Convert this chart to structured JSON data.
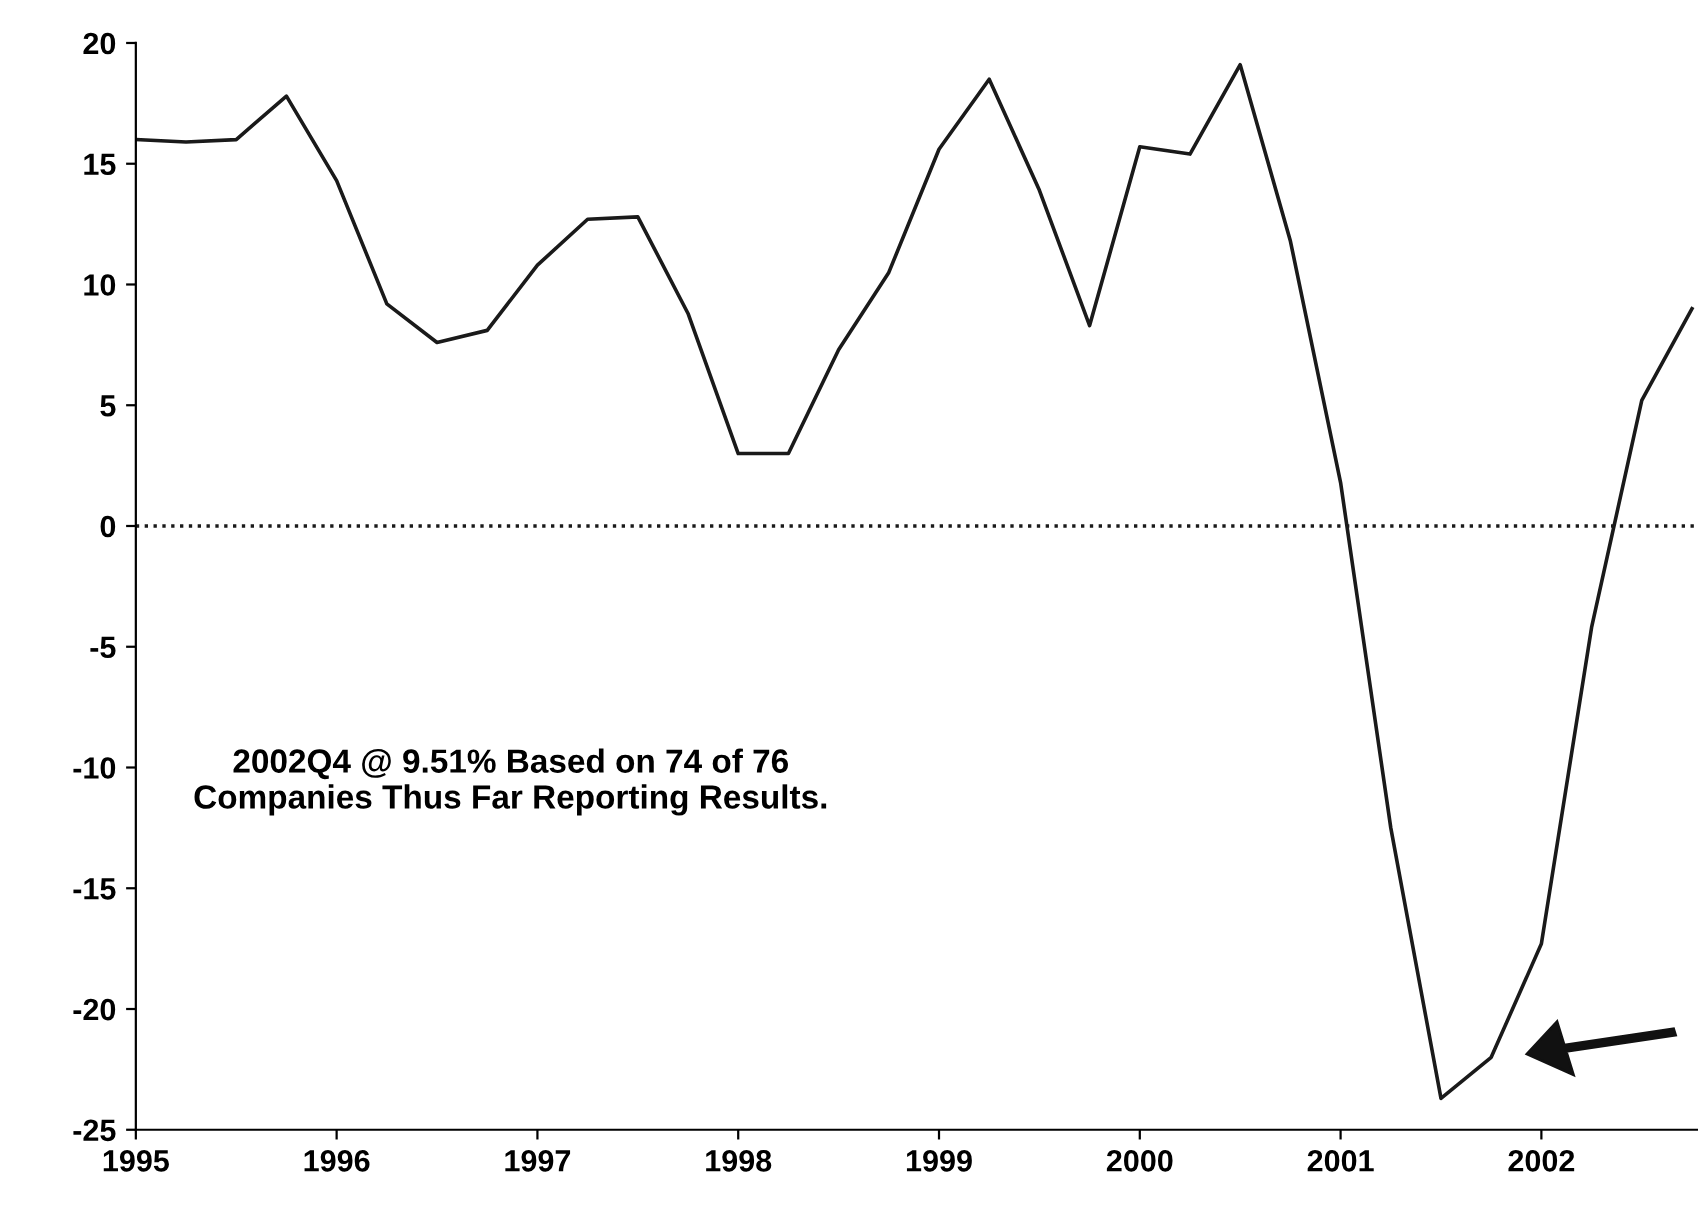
{
  "chart_data": {
    "type": "line",
    "x": [
      1995.0,
      1995.25,
      1995.5,
      1995.75,
      1996.0,
      1996.25,
      1996.5,
      1996.75,
      1997.0,
      1997.25,
      1997.5,
      1997.75,
      1998.0,
      1998.25,
      1998.5,
      1998.75,
      1999.0,
      1999.25,
      1999.5,
      1999.75,
      2000.0,
      2000.25,
      2000.5,
      2000.75,
      2001.0,
      2001.25,
      2001.5,
      2001.75,
      2002.0,
      2002.25,
      2002.5,
      2002.75
    ],
    "series": [
      {
        "color": "#1a1a1a",
        "values": [
          16.0,
          15.9,
          16.0,
          17.8,
          14.3,
          9.2,
          7.6,
          8.1,
          10.8,
          12.7,
          12.8,
          8.8,
          3.0,
          3.0,
          7.3,
          10.5,
          15.6,
          18.5,
          13.9,
          8.3,
          15.7,
          15.4,
          19.1,
          11.8,
          1.8,
          -12.5,
          -23.7,
          -22.0,
          -17.3,
          -4.2,
          5.2,
          9.0
        ]
      }
    ],
    "xlim": [
      1995,
      2002.78
    ],
    "xticks": [
      1995,
      1996,
      1997,
      1998,
      1999,
      2000,
      2001,
      2002
    ],
    "ylim": [
      -25,
      20
    ],
    "yticks": [
      -25,
      -20,
      -15,
      -10,
      -5,
      0,
      5,
      10,
      15,
      20
    ],
    "ref_lines": [
      {
        "axis": "y",
        "value": 0,
        "color": "#1a1a1a",
        "line_style": "dotted"
      }
    ],
    "annotations": [
      "2002Q4 @ 9.51% Based on 74 of 76\nCompanies Thus Far Reporting Results."
    ],
    "grid": false,
    "legend": false,
    "marker": "none",
    "line_style": "solid"
  }
}
